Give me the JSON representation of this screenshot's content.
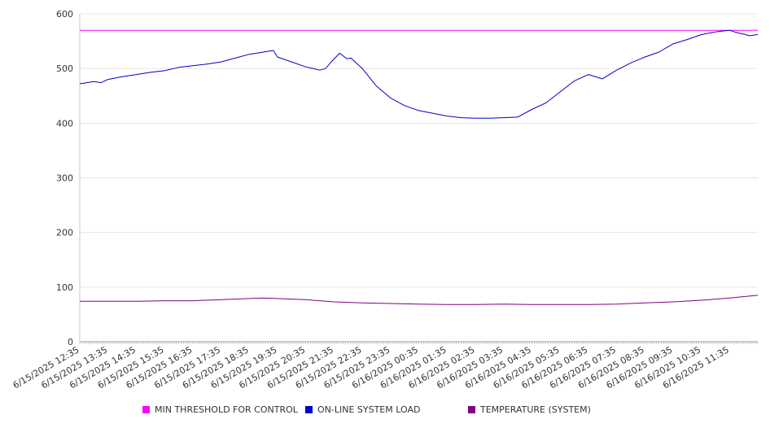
{
  "chart_data": {
    "type": "line",
    "title": "",
    "xlabel": "",
    "ylabel": "",
    "ylim": [
      0,
      600
    ],
    "yticks": [
      0,
      100,
      200,
      300,
      400,
      500,
      600
    ],
    "grid": true,
    "legend_position": "bottom",
    "x_tick_labels": [
      "6/15/2025 12:35",
      "6/15/2025 13:35",
      "6/15/2025 14:35",
      "6/15/2025 15:35",
      "6/15/2025 16:35",
      "6/15/2025 17:35",
      "6/15/2025 18:35",
      "6/15/2025 19:35",
      "6/15/2025 20:35",
      "6/15/2025 21:35",
      "6/15/2025 22:35",
      "6/15/2025 23:35",
      "6/16/2025 00:35",
      "6/16/2025 01:35",
      "6/16/2025 02:35",
      "6/16/2025 03:35",
      "6/16/2025 04:35",
      "6/16/2025 05:35",
      "6/16/2025 06:35",
      "6/16/2025 07:35",
      "6/16/2025 08:35",
      "6/16/2025 09:35",
      "6/16/2025 10:35",
      "6/16/2025 11:35"
    ],
    "x_range_hours": [
      0,
      24
    ],
    "series": [
      {
        "name": "MIN THRESHOLD FOR CONTROL",
        "color": "#ff00ff",
        "x": [
          0,
          24
        ],
        "y": [
          570,
          570
        ]
      },
      {
        "name": "ON-LINE SYSTEM LOAD",
        "color": "#0000cc",
        "x": [
          0,
          0.5,
          0.75,
          1,
          1.5,
          2,
          2.5,
          3,
          3.5,
          4,
          4.5,
          5,
          5.5,
          6,
          6.5,
          6.85,
          7,
          7.5,
          8,
          8.5,
          8.7,
          8.9,
          9.2,
          9.45,
          9.6,
          9.75,
          10,
          10.5,
          11,
          11.5,
          12,
          12.5,
          13,
          13.5,
          14,
          14.5,
          15,
          15.5,
          16,
          16.5,
          17,
          17.5,
          18,
          18.5,
          19,
          19.5,
          20,
          20.5,
          21,
          21.5,
          22,
          22.5,
          23,
          23.3,
          23.5,
          23.7,
          24
        ],
        "y": [
          472,
          476,
          474,
          480,
          485,
          489,
          493,
          496,
          502,
          505,
          508,
          512,
          519,
          526,
          530,
          533,
          521,
          512,
          503,
          497,
          500,
          512,
          528,
          518,
          519,
          512,
          500,
          468,
          446,
          432,
          423,
          418,
          413,
          410,
          409,
          409,
          410,
          411,
          425,
          437,
          457,
          477,
          489,
          481,
          497,
          510,
          521,
          530,
          545,
          553,
          562,
          567,
          570,
          565,
          563,
          560,
          562
        ]
      },
      {
        "name": "TEMPERATURE (SYSTEM)",
        "color": "#800080",
        "x": [
          0,
          2,
          3,
          4,
          5,
          6,
          6.5,
          7,
          7.5,
          8,
          8.5,
          9,
          9.5,
          10,
          11,
          12,
          13,
          14,
          15,
          16,
          17,
          18,
          19,
          20,
          21,
          22,
          23,
          24
        ],
        "y": [
          74,
          74,
          75,
          75,
          77,
          79,
          80,
          79,
          78,
          77,
          75,
          73,
          72,
          71,
          70,
          69,
          68,
          68,
          69,
          68,
          68,
          68,
          69,
          71,
          73,
          76,
          80,
          85
        ]
      }
    ]
  }
}
